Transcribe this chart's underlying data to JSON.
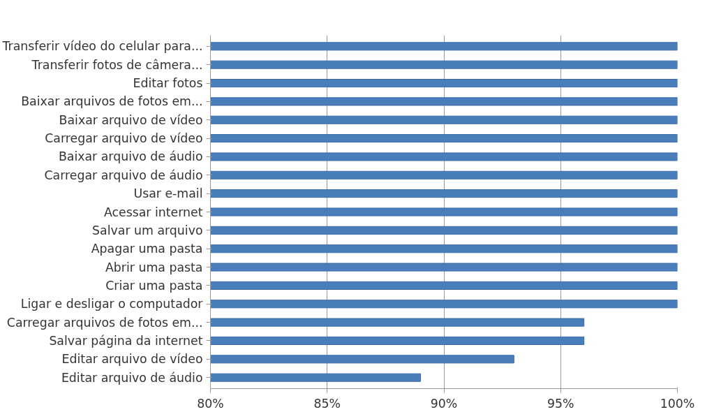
{
  "chart_data": {
    "type": "bar",
    "orientation": "horizontal",
    "categories": [
      "Transferir vídeo do celular para...",
      "Transferir fotos de câmera...",
      "Editar fotos",
      "Baixar arquivos de fotos em...",
      "Baixar arquivo de vídeo",
      "Carregar arquivo de vídeo",
      "Baixar arquivo de áudio",
      "Carregar arquivo de áudio",
      "Usar e-mail",
      "Acessar internet",
      "Salvar um arquivo",
      "Apagar uma pasta",
      "Abrir uma pasta",
      "Criar uma pasta",
      "Ligar e desligar o computador",
      "Carregar arquivos de fotos em...",
      "Salvar página da internet",
      "Editar arquivo de vídeo",
      "Editar arquivo de áudio"
    ],
    "values": [
      100,
      100,
      100,
      100,
      100,
      100,
      100,
      100,
      100,
      100,
      100,
      100,
      100,
      100,
      100,
      96,
      96,
      93,
      89
    ],
    "color": "#4a7ebb",
    "xlim": [
      80,
      100
    ],
    "xticks": [
      {
        "value": 80,
        "label": "80%"
      },
      {
        "value": 85,
        "label": "85%"
      },
      {
        "value": 90,
        "label": "90%"
      },
      {
        "value": 95,
        "label": "95%"
      },
      {
        "value": 100,
        "label": "100%"
      }
    ],
    "grid": "x"
  }
}
